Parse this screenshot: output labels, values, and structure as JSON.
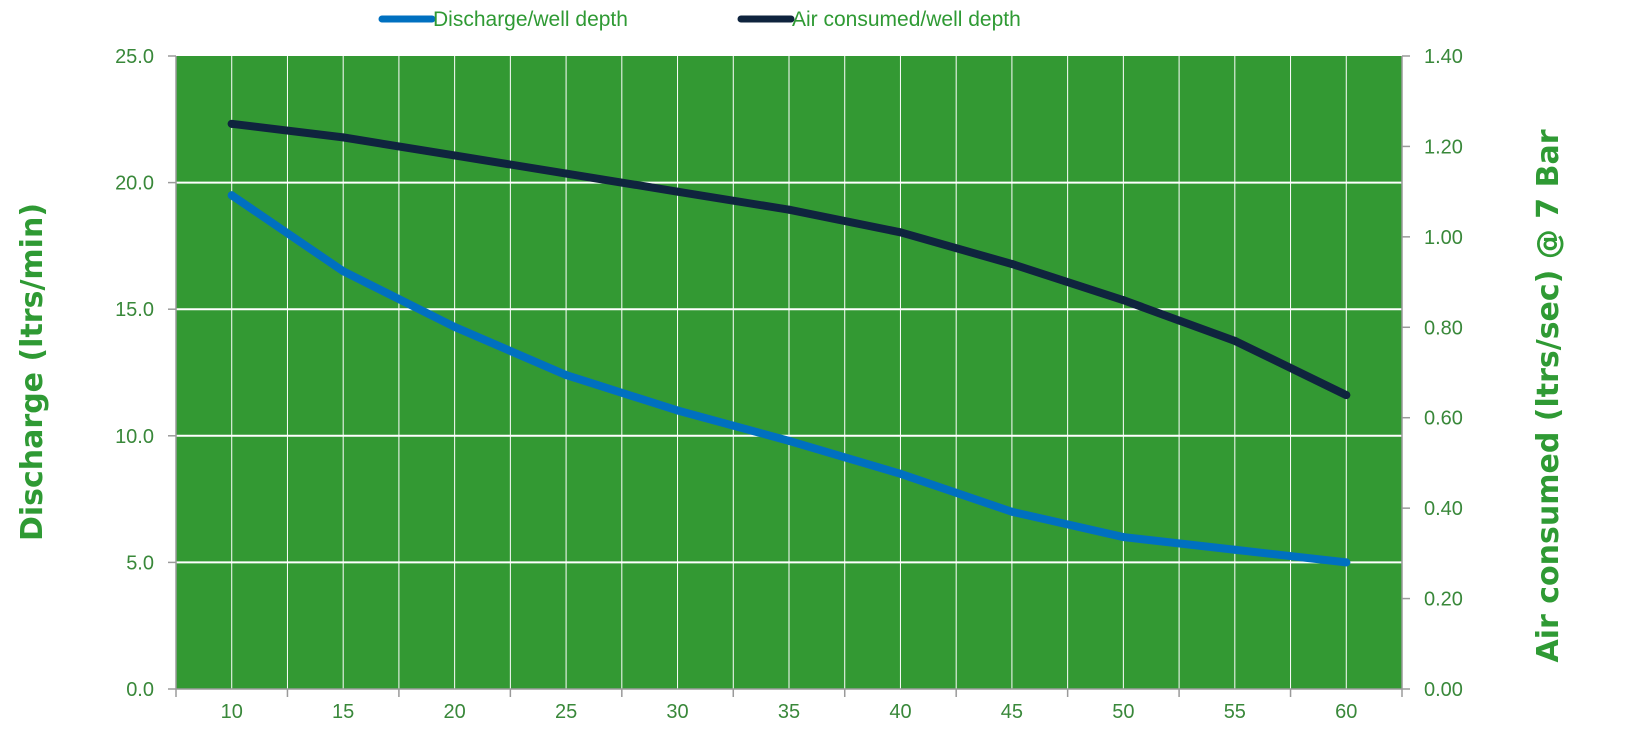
{
  "chart_data": {
    "type": "line",
    "x": [
      10,
      15,
      20,
      25,
      30,
      35,
      40,
      45,
      50,
      55,
      60
    ],
    "series": [
      {
        "name": "Discharge/well depth",
        "axis": "left",
        "color": "#0070c0",
        "values": [
          19.5,
          16.5,
          14.3,
          12.4,
          11.0,
          9.8,
          8.5,
          7.0,
          6.0,
          5.5,
          5.0
        ]
      },
      {
        "name": "Air consumed/well depth",
        "axis": "right",
        "color": "#0f243e",
        "values": [
          1.25,
          1.22,
          1.18,
          1.14,
          1.1,
          1.06,
          1.01,
          0.94,
          0.86,
          0.77,
          0.65
        ]
      }
    ],
    "ylabel": "Discharge (ltrs/min)",
    "y2label": "Air consumed (ltrs/sec) @ 7 Bar",
    "ylim": [
      0,
      25
    ],
    "y2lim": [
      0,
      1.4
    ],
    "yticks": [
      "0.0",
      "5.0",
      "10.0",
      "15.0",
      "20.0",
      "25.0"
    ],
    "y2ticks": [
      "0.00",
      "0.20",
      "0.40",
      "0.60",
      "0.80",
      "1.00",
      "1.20",
      "1.40"
    ],
    "xticks": [
      "10",
      "15",
      "20",
      "25",
      "30",
      "35",
      "40",
      "45",
      "50",
      "55",
      "60"
    ],
    "legend_position": "top",
    "plot_background": "#339933",
    "grid": true
  }
}
